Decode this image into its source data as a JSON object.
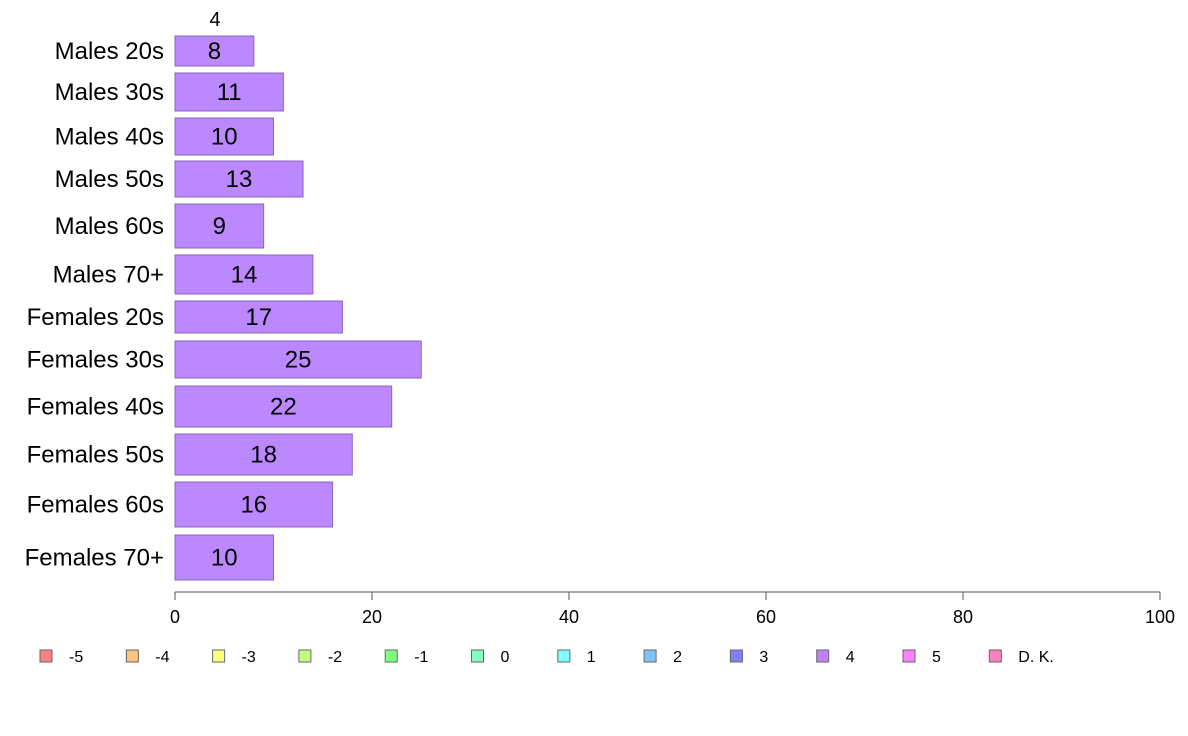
{
  "chart_data": {
    "type": "bar",
    "orientation": "horizontal",
    "top_label": "4",
    "categories": [
      "Males 20s",
      "Males 30s",
      "Males 40s",
      "Males 50s",
      "Males 60s",
      "Males 70+",
      "Females 20s",
      "Females 30s",
      "Females 40s",
      "Females 50s",
      "Females 60s",
      "Females 70+"
    ],
    "series": [
      {
        "name": "4",
        "color": "#bb88ff",
        "values": [
          8,
          11,
          10,
          13,
          9,
          14,
          17,
          25,
          22,
          18,
          16,
          10
        ]
      }
    ],
    "xlim": [
      0,
      100
    ],
    "xticks": [
      "0",
      "20",
      "40",
      "60",
      "80",
      "100"
    ],
    "grid": false,
    "legend_position": "bottom",
    "legend": [
      {
        "label": "-5",
        "color": "#ff8080"
      },
      {
        "label": "-4",
        "color": "#ffc080"
      },
      {
        "label": "-3",
        "color": "#ffff80"
      },
      {
        "label": "-2",
        "color": "#c0ff80"
      },
      {
        "label": "-1",
        "color": "#80ff80"
      },
      {
        "label": "0",
        "color": "#80ffc0"
      },
      {
        "label": "1",
        "color": "#80ffff"
      },
      {
        "label": "2",
        "color": "#80c0ff"
      },
      {
        "label": "3",
        "color": "#8080ff"
      },
      {
        "label": "4",
        "color": "#c080ff"
      },
      {
        "label": "5",
        "color": "#ff80ff"
      },
      {
        "label": "D. K.",
        "color": "#ff80c0"
      }
    ]
  }
}
